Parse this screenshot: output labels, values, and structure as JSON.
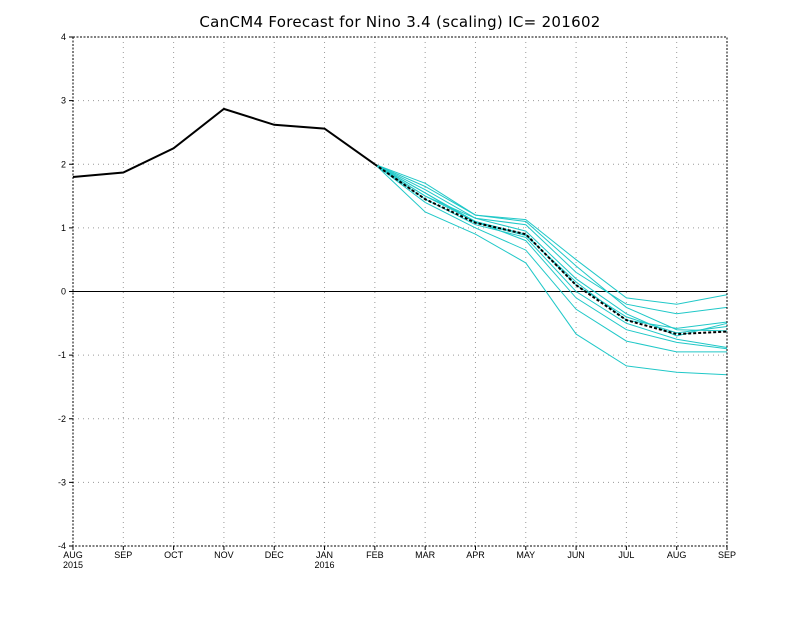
{
  "chart_data": {
    "type": "line",
    "title": "CanCM4 Forecast for Nino 3.4 (scaling)  IC= 201602",
    "xlabel": "",
    "ylabel": "",
    "categories": [
      "AUG",
      "SEP",
      "OCT",
      "NOV",
      "DEC",
      "JAN",
      "FEB",
      "MAR",
      "APR",
      "MAY",
      "JUN",
      "JUL",
      "AUG",
      "SEP"
    ],
    "category_sublabels": [
      "2015",
      "",
      "",
      "",
      "",
      "2016",
      "",
      "",
      "",
      "",
      "",
      "",
      "",
      ""
    ],
    "yticks": [
      -4,
      -3,
      -2,
      -1,
      0,
      1,
      2,
      3,
      4
    ],
    "ylim": [
      -4,
      4
    ],
    "grid": true,
    "zero_line": true,
    "observed": {
      "color": "#000000",
      "x": [
        "AUG 2015",
        "SEP 2015",
        "OCT 2015",
        "NOV 2015",
        "DEC 2015",
        "JAN 2016",
        "FEB 2016"
      ],
      "values": [
        1.8,
        1.87,
        2.25,
        2.87,
        2.62,
        2.56,
        2.0
      ]
    },
    "ensemble_mean": {
      "color": "#000000",
      "style": "dashed",
      "x": [
        "FEB 2016",
        "MAR 2016",
        "APR 2016",
        "MAY 2016",
        "JUN 2016",
        "JUL 2016",
        "AUG 2016",
        "SEP 2016"
      ],
      "values": [
        2.0,
        1.45,
        1.08,
        0.9,
        0.1,
        -0.45,
        -0.67,
        -0.63
      ]
    },
    "members": {
      "color": "#20c8c8",
      "x": [
        "FEB 2016",
        "MAR 2016",
        "APR 2016",
        "MAY 2016",
        "JUN 2016",
        "JUL 2016",
        "AUG 2016",
        "SEP 2016"
      ],
      "series": [
        {
          "values": [
            2.0,
            1.25,
            0.9,
            0.45,
            -0.67,
            -1.17,
            -1.27,
            -1.31
          ]
        },
        {
          "values": [
            2.0,
            1.4,
            1.0,
            0.65,
            -0.28,
            -0.78,
            -0.95,
            -0.95
          ]
        },
        {
          "values": [
            2.0,
            1.5,
            1.1,
            0.8,
            -0.1,
            -0.6,
            -0.8,
            -0.9
          ]
        },
        {
          "values": [
            2.0,
            1.45,
            1.05,
            0.85,
            0.0,
            -0.5,
            -0.75,
            -0.88
          ]
        },
        {
          "values": [
            2.0,
            1.55,
            1.1,
            0.9,
            0.1,
            -0.4,
            -0.65,
            -0.55
          ]
        },
        {
          "values": [
            2.0,
            1.6,
            1.15,
            0.95,
            0.2,
            -0.35,
            -0.7,
            -0.5
          ]
        },
        {
          "values": [
            2.0,
            1.65,
            1.2,
            1.1,
            0.4,
            -0.25,
            -0.6,
            -0.62
          ]
        },
        {
          "values": [
            2.0,
            1.5,
            1.15,
            1.05,
            0.3,
            -0.2,
            -0.35,
            -0.25
          ]
        },
        {
          "values": [
            2.0,
            1.7,
            1.2,
            1.13,
            0.5,
            -0.1,
            -0.2,
            -0.05
          ]
        },
        {
          "values": [
            2.0,
            1.55,
            1.08,
            0.88,
            0.15,
            -0.45,
            -0.58,
            -0.48
          ]
        }
      ]
    }
  }
}
